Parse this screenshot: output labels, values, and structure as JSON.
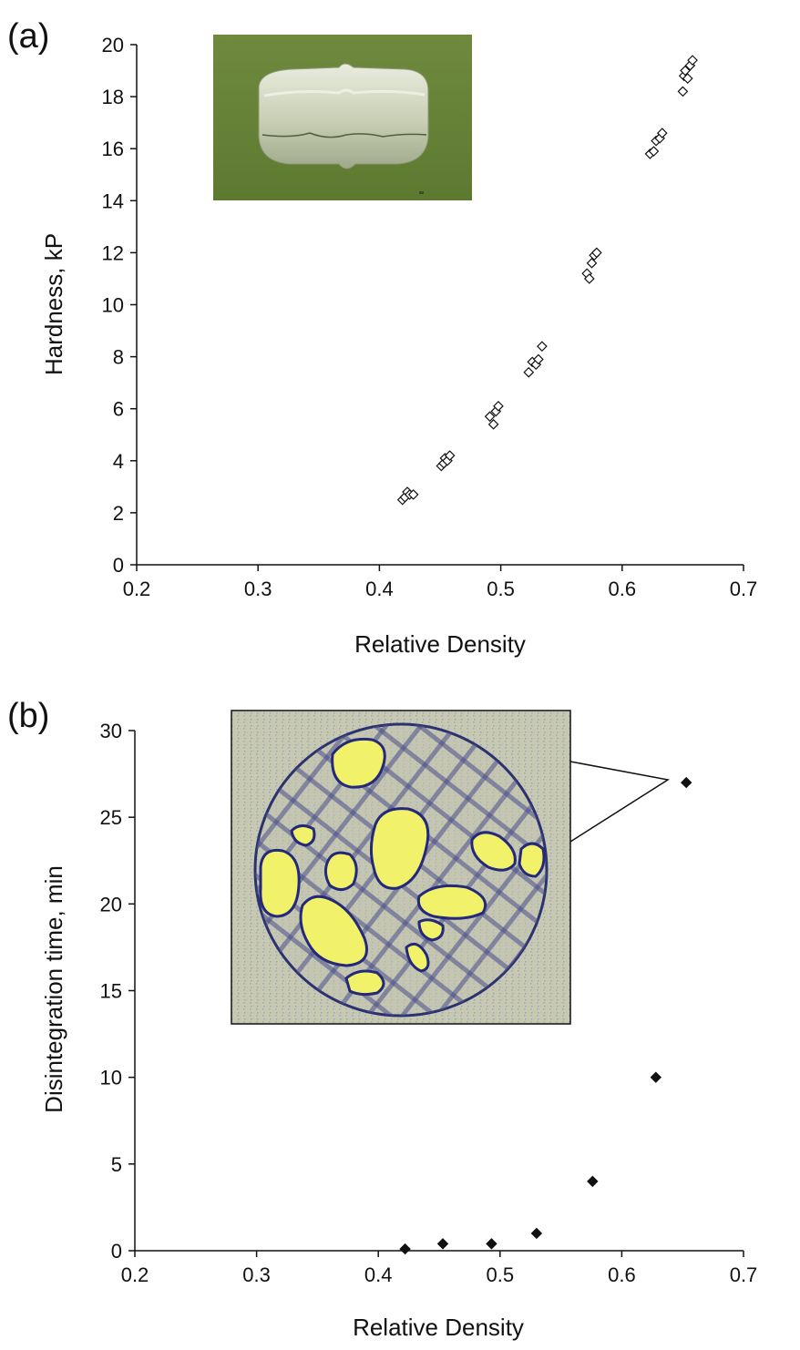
{
  "chart_data": [
    {
      "panel_label": "(a)",
      "type": "scatter",
      "xlabel": "Relative Density",
      "ylabel": "Hardness, kP",
      "xlim": [
        0.2,
        0.7
      ],
      "ylim": [
        0,
        20
      ],
      "xticks": [
        "0.2",
        "0.3",
        "0.4",
        "0.5",
        "0.6",
        "0.7"
      ],
      "yticks": [
        "0",
        "2",
        "4",
        "6",
        "8",
        "10",
        "12",
        "14",
        "16",
        "18",
        "20"
      ],
      "marker": "open-diamond",
      "grid": false,
      "inset": "tablet-photo",
      "x": [
        0.419,
        0.421,
        0.423,
        0.425,
        0.428,
        0.451,
        0.453,
        0.454,
        0.456,
        0.458,
        0.491,
        0.494,
        0.496,
        0.498,
        0.523,
        0.526,
        0.529,
        0.531,
        0.534,
        0.571,
        0.573,
        0.575,
        0.577,
        0.579,
        0.623,
        0.626,
        0.628,
        0.631,
        0.633,
        0.65,
        0.651,
        0.652,
        0.654,
        0.656,
        0.658
      ],
      "y": [
        2.5,
        2.6,
        2.8,
        2.7,
        2.7,
        3.8,
        3.9,
        4.1,
        4.0,
        4.2,
        5.7,
        5.4,
        5.9,
        6.1,
        7.4,
        7.8,
        7.7,
        7.9,
        8.4,
        11.2,
        11.0,
        11.6,
        11.9,
        12.0,
        15.8,
        15.9,
        16.3,
        16.4,
        16.6,
        18.2,
        18.8,
        19.0,
        18.7,
        19.2,
        19.4
      ]
    },
    {
      "panel_label": "(b)",
      "type": "scatter",
      "xlabel": "Relative Density",
      "ylabel": "Disintegration time, min",
      "xlim": [
        0.2,
        0.7
      ],
      "ylim": [
        0,
        30
      ],
      "xticks": [
        "0.2",
        "0.3",
        "0.4",
        "0.5",
        "0.6",
        "0.7"
      ],
      "yticks": [
        "0",
        "5",
        "10",
        "15",
        "20",
        "25",
        "30"
      ],
      "marker": "filled-diamond",
      "grid": false,
      "inset": "disintegration-mesh-image",
      "x": [
        0.422,
        0.453,
        0.493,
        0.53,
        0.576,
        0.628,
        0.653
      ],
      "y": [
        0.1,
        0.4,
        0.4,
        1.0,
        4.0,
        10.0,
        27.0
      ]
    }
  ]
}
